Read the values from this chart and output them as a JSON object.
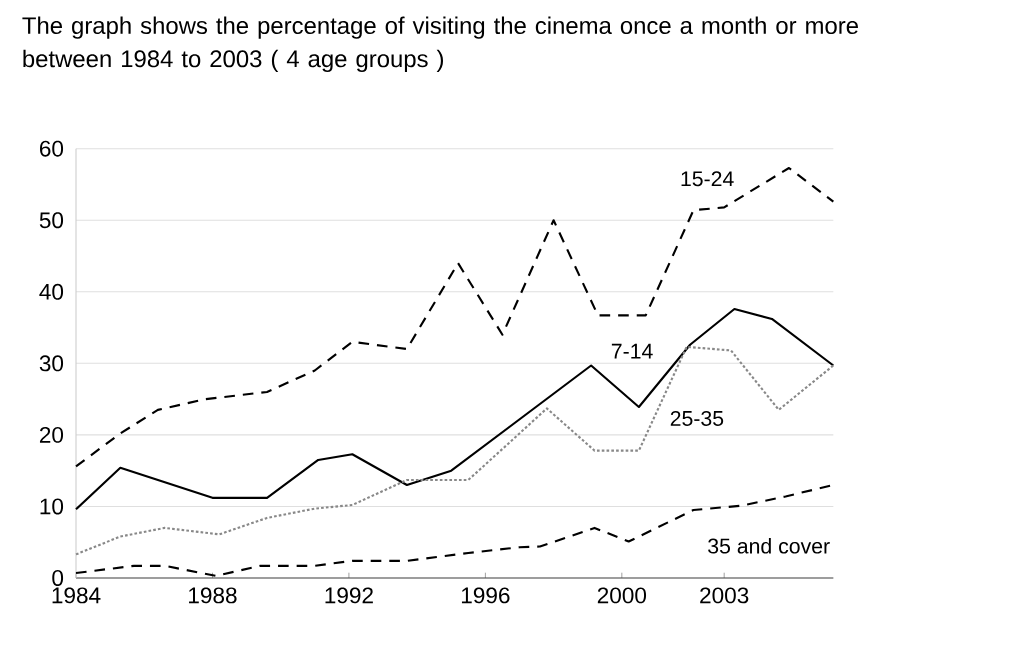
{
  "chart_data": {
    "type": "line",
    "title": "The graph shows the percentage of visiting the cinema once a month or more between 1984 to 2003 ( 4 age groups )",
    "xlim": [
      1984,
      2006.2
    ],
    "ylim": [
      0,
      60
    ],
    "xticks": [
      1984,
      1988,
      1992,
      1996,
      2000,
      2003
    ],
    "yticks": [
      0,
      10,
      20,
      30,
      40,
      50,
      60
    ],
    "grid": "y",
    "marker": "none",
    "series": [
      {
        "color": "#000000",
        "line_style": "dashed",
        "x": [
          1984,
          1985.3,
          1986.4,
          1987.8,
          1989.6,
          1991,
          1992.1,
          1993.7,
          1995.2,
          1996.5,
          1998,
          1999.3,
          2000.7,
          2002.1,
          2003,
          2004.9,
          2006.2
        ],
        "values": [
          15.6,
          20.2,
          23.5,
          25,
          26,
          29,
          33,
          32,
          44,
          34,
          50,
          36.7,
          36.7,
          51.4,
          51.8,
          57.3,
          52.6
        ]
      },
      {
        "color": "#000000",
        "line_style": "solid",
        "x": [
          1984,
          1985.3,
          1988,
          1989.6,
          1991.1,
          1992.1,
          1993.7,
          1995,
          1999.1,
          2000.5,
          2002,
          2003.3,
          2004.4,
          2006.2
        ],
        "values": [
          9.6,
          15.4,
          11.2,
          11.2,
          16.5,
          17.3,
          13,
          15,
          29.7,
          23.9,
          32.6,
          37.6,
          36.2,
          29.7
        ]
      },
      {
        "color": "#888888",
        "line_style": "dotted",
        "x": [
          1984,
          1985.3,
          1986.6,
          1988.2,
          1989.6,
          1991,
          1992.1,
          1993.7,
          1995.5,
          1997,
          1997.8,
          1999.2,
          2000.5,
          2001.9,
          2003.2,
          2004.6,
          2006.2
        ],
        "values": [
          3.3,
          5.8,
          7,
          6.1,
          8.4,
          9.7,
          10.2,
          13.7,
          13.7,
          20.2,
          23.7,
          17.8,
          17.8,
          32.3,
          31.8,
          23.5,
          29.7
        ]
      },
      {
        "color": "#000000",
        "line_style": "dashed",
        "x": [
          1984,
          1985.7,
          1986.6,
          1988.1,
          1989.4,
          1991,
          1992.1,
          1993.7,
          1995.5,
          1997,
          1997.6,
          1999.2,
          2000.2,
          2002.1,
          2003.5,
          2004.8,
          2006.2
        ],
        "values": [
          0.7,
          1.7,
          1.7,
          0.3,
          1.7,
          1.7,
          2.4,
          2.4,
          3.5,
          4.3,
          4.4,
          7,
          5.1,
          9.5,
          10.1,
          11.4,
          13
        ]
      }
    ],
    "annotations": [
      {
        "text": "15-24",
        "x": 2002.5,
        "y": 55.8
      },
      {
        "text": "7-14",
        "x": 2000.3,
        "y": 31.7
      },
      {
        "text": "25-35",
        "x": 2002.2,
        "y": 22.3
      },
      "35 and cover"
    ]
  }
}
